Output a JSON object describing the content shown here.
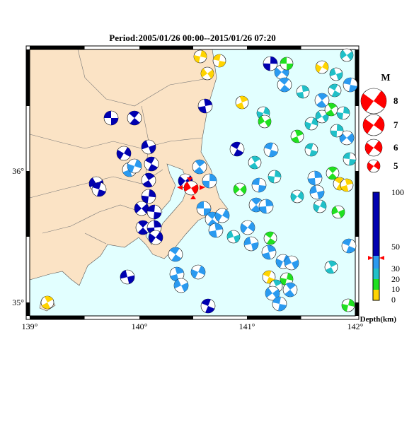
{
  "title": "Period:2005/01/26 00:00--2015/01/26 07:20",
  "lon_ticks": [
    "139°",
    "140°",
    "141°",
    "142°"
  ],
  "lat_ticks": [
    "36°",
    "35°"
  ],
  "magnitude_legend": {
    "title": "M",
    "labels": [
      "8",
      "7",
      "6",
      "5"
    ]
  },
  "depth_scale": {
    "labels": [
      "100",
      "50",
      "30",
      "20",
      "10",
      "0"
    ],
    "unit": "Depth(km)"
  }
}
